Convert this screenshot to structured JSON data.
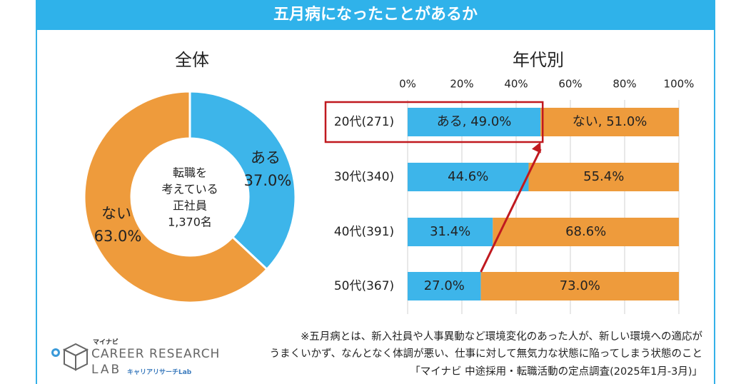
{
  "banner": {
    "title": "五月病になったことがあるか"
  },
  "left": {
    "subtitle": "全体",
    "center_lines": [
      "転職を",
      "考えている",
      "正社員",
      "1,370名"
    ]
  },
  "right": {
    "subtitle": "年代別"
  },
  "colors": {
    "ari": "#3db5ea",
    "nai": "#ee9b3c",
    "highlight": "#c0191f",
    "banner": "#2fb2ea"
  },
  "chart_data": [
    {
      "type": "pie",
      "title": "全体",
      "labels": [
        "ある",
        "ない"
      ],
      "values": [
        37.0,
        63.0
      ],
      "unit": "%"
    },
    {
      "type": "bar",
      "orientation": "horizontal",
      "stacked": true,
      "title": "年代別",
      "categories": [
        "20代(271)",
        "30代(340)",
        "40代(391)",
        "50代(367)"
      ],
      "series": [
        {
          "name": "ある",
          "values": [
            49.0,
            44.6,
            31.4,
            27.0
          ]
        },
        {
          "name": "ない",
          "values": [
            51.0,
            55.4,
            68.6,
            73.0
          ]
        }
      ],
      "xlim": [
        0,
        100
      ],
      "xticks": [
        "0%",
        "20%",
        "40%",
        "60%",
        "80%",
        "100%"
      ],
      "data_labels": [
        [
          "ある, 49.0%",
          "ない, 51.0%"
        ],
        [
          "44.6%",
          "55.4%"
        ],
        [
          "31.4%",
          "68.6%"
        ],
        [
          "27.0%",
          "73.0%"
        ]
      ],
      "annotation": "arrow from 50代 ある value to 20代 ある value; 20代 row outlined"
    }
  ],
  "footnote": {
    "lines": [
      "※五月病とは、新入社員や人事異動など環境変化のあった人が、新しい環境への適応が",
      "うまくいかず、なんとなく体調が悪い、仕事に対して無気力な状態に陥ってしまう状態のこと",
      "「マイナビ 中途採用・転職活動の定点調査(2025年1月-3月)」"
    ]
  },
  "logo": {
    "small": "マイナビ",
    "main": "CAREER RESEARCH",
    "lab": "LAB",
    "jp": "キャリアリサーチLab"
  }
}
